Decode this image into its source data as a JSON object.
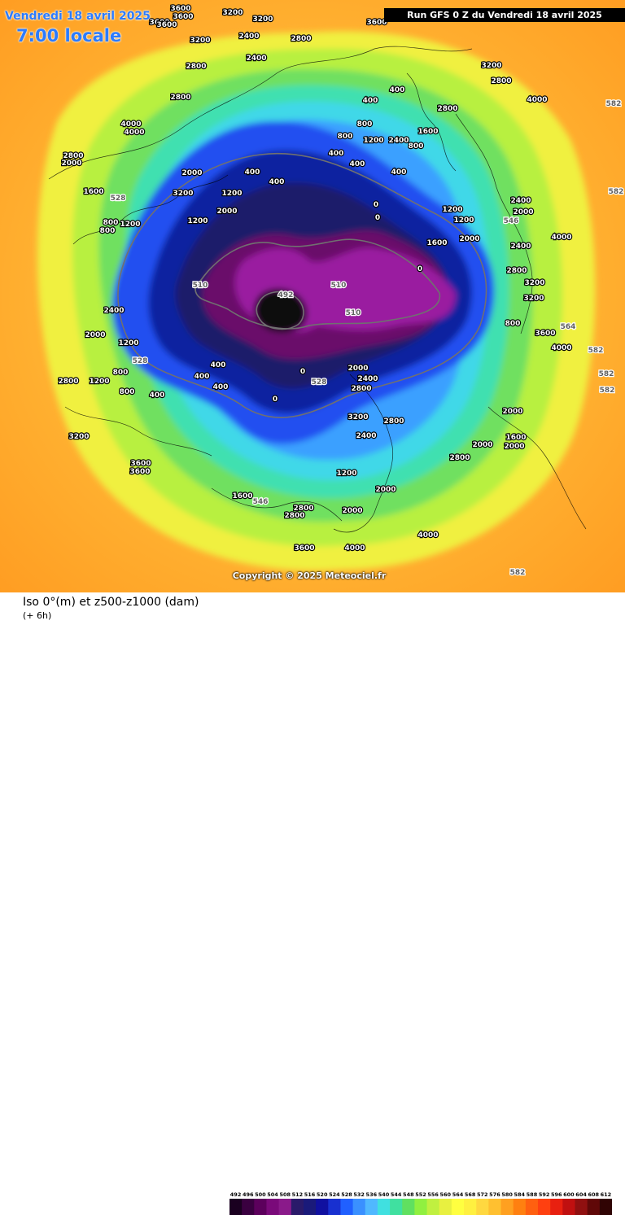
{
  "header": {
    "date": "Vendredi 18 avril 2025",
    "local_time": "7:00 locale",
    "run_title": "Run GFS 0 Z du Vendredi 18 avril 2025"
  },
  "footer": {
    "copyright": "Copyright © 2025 Meteociel.fr",
    "title": "Iso 0°(m) et z500-z1000 (dam)",
    "subtitle": "(+ 6h)"
  },
  "legend": {
    "ticks": [
      "492",
      "496",
      "500",
      "504",
      "508",
      "512",
      "516",
      "520",
      "524",
      "528",
      "532",
      "536",
      "540",
      "544",
      "548",
      "552",
      "556",
      "560",
      "564",
      "568",
      "572",
      "576",
      "580",
      "584",
      "588",
      "592",
      "596",
      "600",
      "604",
      "608",
      "612"
    ],
    "colors": [
      "#1a0020",
      "#3a0040",
      "#5c005c",
      "#7a0a7a",
      "#8a1a8a",
      "#2a1a6a",
      "#1a1a7a",
      "#1010a0",
      "#1830d0",
      "#2060ff",
      "#3a90ff",
      "#50b8ff",
      "#40e0e0",
      "#40e0a0",
      "#60e060",
      "#90f040",
      "#c0f040",
      "#e8f040",
      "#ffff40",
      "#fff040",
      "#ffd840",
      "#ffc030",
      "#ffa020",
      "#ff8010",
      "#ff6010",
      "#ff4010",
      "#e82010",
      "#c01010",
      "#901010",
      "#600808",
      "#300404"
    ]
  },
  "iso_labels": [
    {
      "text": "3600",
      "pos": [
        222,
        13
      ]
    },
    {
      "text": "3600",
      "pos": [
        225,
        23
      ]
    },
    {
      "text": "3600",
      "pos": [
        196,
        30
      ]
    },
    {
      "text": "3600",
      "pos": [
        205,
        33
      ]
    },
    {
      "text": "3200",
      "pos": [
        286,
        18
      ]
    },
    {
      "text": "3200",
      "pos": [
        323,
        26
      ]
    },
    {
      "text": "2400",
      "pos": [
        306,
        47
      ]
    },
    {
      "text": "3200",
      "pos": [
        246,
        52
      ]
    },
    {
      "text": "2800",
      "pos": [
        370,
        50
      ]
    },
    {
      "text": "3600",
      "pos": [
        463,
        30
      ]
    },
    {
      "text": "2400",
      "pos": [
        315,
        74
      ]
    },
    {
      "text": "2800",
      "pos": [
        241,
        84
      ]
    },
    {
      "text": "2800",
      "pos": [
        222,
        122
      ]
    },
    {
      "text": "4000",
      "pos": [
        161,
        155
      ]
    },
    {
      "text": "4000",
      "pos": [
        165,
        165
      ]
    },
    {
      "text": "2800",
      "pos": [
        90,
        194
      ]
    },
    {
      "text": "2000",
      "pos": [
        88,
        203
      ]
    },
    {
      "text": "1600",
      "pos": [
        115,
        238
      ]
    },
    {
      "text": "800",
      "pos": [
        136,
        276
      ]
    },
    {
      "text": "800",
      "pos": [
        132,
        286
      ]
    },
    {
      "text": "1200",
      "pos": [
        160,
        278
      ]
    },
    {
      "text": "2000",
      "pos": [
        236,
        215
      ]
    },
    {
      "text": "3200",
      "pos": [
        225,
        240
      ]
    },
    {
      "text": "1200",
      "pos": [
        285,
        240
      ]
    },
    {
      "text": "1200",
      "pos": [
        243,
        274
      ]
    },
    {
      "text": "2000",
      "pos": [
        279,
        262
      ]
    },
    {
      "text": "400",
      "pos": [
        310,
        214
      ]
    },
    {
      "text": "400",
      "pos": [
        340,
        226
      ]
    },
    {
      "text": "400",
      "pos": [
        413,
        191
      ]
    },
    {
      "text": "400",
      "pos": [
        455,
        126
      ]
    },
    {
      "text": "400",
      "pos": [
        488,
        113
      ]
    },
    {
      "text": "800",
      "pos": [
        424,
        170
      ]
    },
    {
      "text": "800",
      "pos": [
        448,
        155
      ]
    },
    {
      "text": "1200",
      "pos": [
        459,
        175
      ]
    },
    {
      "text": "2400",
      "pos": [
        490,
        175
      ]
    },
    {
      "text": "800",
      "pos": [
        511,
        182
      ]
    },
    {
      "text": "1600",
      "pos": [
        526,
        164
      ]
    },
    {
      "text": "400",
      "pos": [
        439,
        204
      ]
    },
    {
      "text": "400",
      "pos": [
        490,
        214
      ]
    },
    {
      "text": "1200",
      "pos": [
        556,
        260
      ]
    },
    {
      "text": "1200",
      "pos": [
        570,
        273
      ]
    },
    {
      "text": "1600",
      "pos": [
        537,
        301
      ]
    },
    {
      "text": "2000",
      "pos": [
        577,
        296
      ]
    },
    {
      "text": "2400",
      "pos": [
        640,
        249
      ]
    },
    {
      "text": "2000",
      "pos": [
        643,
        263
      ]
    },
    {
      "text": "2400",
      "pos": [
        640,
        305
      ]
    },
    {
      "text": "4000",
      "pos": [
        690,
        294
      ]
    },
    {
      "text": "2800",
      "pos": [
        635,
        335
      ]
    },
    {
      "text": "3200",
      "pos": [
        657,
        350
      ]
    },
    {
      "text": "3200",
      "pos": [
        656,
        369
      ]
    },
    {
      "text": "800",
      "pos": [
        630,
        400
      ]
    },
    {
      "text": "3600",
      "pos": [
        670,
        412
      ]
    },
    {
      "text": "4000",
      "pos": [
        690,
        430
      ]
    },
    {
      "text": "3200",
      "pos": [
        604,
        83
      ]
    },
    {
      "text": "2800",
      "pos": [
        616,
        102
      ]
    },
    {
      "text": "4000",
      "pos": [
        660,
        125
      ]
    },
    {
      "text": "2800",
      "pos": [
        550,
        136
      ]
    },
    {
      "text": "2000",
      "pos": [
        440,
        455
      ]
    },
    {
      "text": "2400",
      "pos": [
        452,
        468
      ]
    },
    {
      "text": "2800",
      "pos": [
        444,
        480
      ]
    },
    {
      "text": "2800",
      "pos": [
        484,
        520
      ]
    },
    {
      "text": "3200",
      "pos": [
        440,
        515
      ]
    },
    {
      "text": "2400",
      "pos": [
        450,
        538
      ]
    },
    {
      "text": "2000",
      "pos": [
        630,
        508
      ]
    },
    {
      "text": "1600",
      "pos": [
        634,
        540
      ]
    },
    {
      "text": "2000",
      "pos": [
        593,
        549
      ]
    },
    {
      "text": "2000",
      "pos": [
        632,
        551
      ]
    },
    {
      "text": "2800",
      "pos": [
        565,
        565
      ]
    },
    {
      "text": "1200",
      "pos": [
        426,
        584
      ]
    },
    {
      "text": "2000",
      "pos": [
        474,
        604
      ]
    },
    {
      "text": "2000",
      "pos": [
        433,
        630
      ]
    },
    {
      "text": "2800",
      "pos": [
        373,
        627
      ]
    },
    {
      "text": "2800",
      "pos": [
        362,
        636
      ]
    },
    {
      "text": "3600",
      "pos": [
        374,
        676
      ]
    },
    {
      "text": "4000",
      "pos": [
        436,
        676
      ]
    },
    {
      "text": "4000",
      "pos": [
        526,
        660
      ]
    },
    {
      "text": "1600",
      "pos": [
        298,
        612
      ]
    },
    {
      "text": "3200",
      "pos": [
        97,
        539
      ]
    },
    {
      "text": "3600",
      "pos": [
        173,
        572
      ]
    },
    {
      "text": "3600",
      "pos": [
        172,
        582
      ]
    },
    {
      "text": "2800",
      "pos": [
        84,
        471
      ]
    },
    {
      "text": "1200",
      "pos": [
        122,
        471
      ]
    },
    {
      "text": "800",
      "pos": [
        156,
        484
      ]
    },
    {
      "text": "400",
      "pos": [
        193,
        488
      ]
    },
    {
      "text": "400",
      "pos": [
        268,
        451
      ]
    },
    {
      "text": "400",
      "pos": [
        248,
        465
      ]
    },
    {
      "text": "400",
      "pos": [
        271,
        478
      ]
    },
    {
      "text": "0",
      "pos": [
        338,
        493
      ]
    },
    {
      "text": "0",
      "pos": [
        372,
        459
      ]
    },
    {
      "text": "0",
      "pos": [
        462,
        254
      ]
    },
    {
      "text": "0",
      "pos": [
        464,
        270
      ]
    },
    {
      "text": "0",
      "pos": [
        516,
        333
      ]
    },
    {
      "text": "2400",
      "pos": [
        140,
        384
      ]
    },
    {
      "text": "2000",
      "pos": [
        117,
        414
      ]
    },
    {
      "text": "800",
      "pos": [
        148,
        460
      ]
    },
    {
      "text": "1200",
      "pos": [
        158,
        424
      ]
    }
  ],
  "geopot_labels": [
    {
      "text": "492",
      "pos": [
        351,
        365
      ]
    },
    {
      "text": "510",
      "pos": [
        246,
        353
      ]
    },
    {
      "text": "510",
      "pos": [
        416,
        353
      ]
    },
    {
      "text": "510",
      "pos": [
        434,
        387
      ]
    },
    {
      "text": "528",
      "pos": [
        392,
        472
      ]
    },
    {
      "text": "528",
      "pos": [
        172,
        446
      ]
    },
    {
      "text": "528",
      "pos": [
        145,
        246
      ]
    },
    {
      "text": "546",
      "pos": [
        320,
        619
      ]
    },
    {
      "text": "546",
      "pos": [
        628,
        274
      ]
    },
    {
      "text": "564",
      "pos": [
        698,
        404
      ]
    },
    {
      "text": "582",
      "pos": [
        732,
        433
      ]
    },
    {
      "text": "582",
      "pos": [
        745,
        462
      ]
    },
    {
      "text": "582",
      "pos": [
        746,
        482
      ]
    },
    {
      "text": "582",
      "pos": [
        754,
        130
      ]
    },
    {
      "text": "582",
      "pos": [
        757,
        238
      ]
    },
    {
      "text": "582",
      "pos": [
        636,
        706
      ]
    }
  ]
}
